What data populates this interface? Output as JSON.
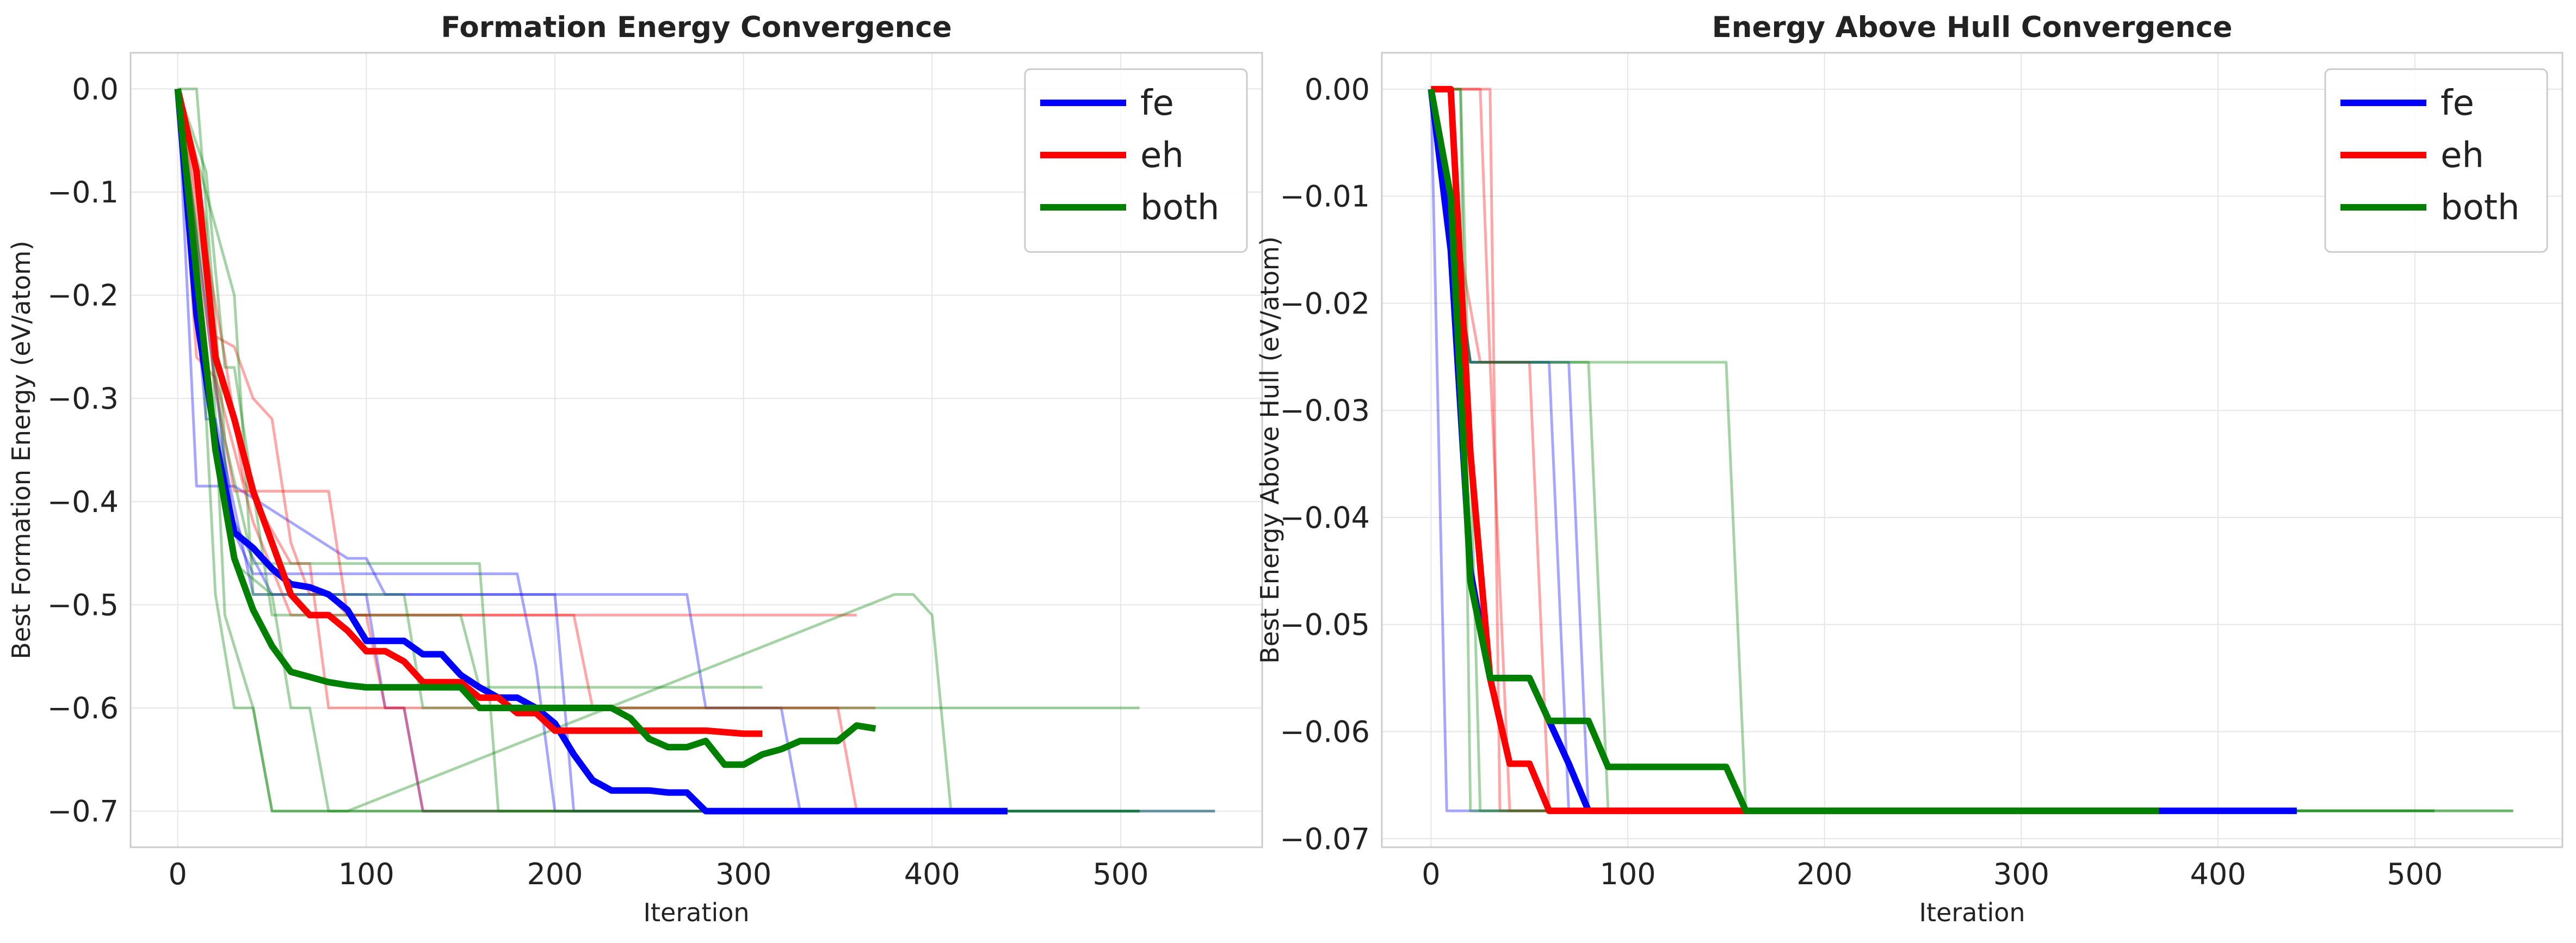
{
  "colors": {
    "fe": "#0000ff",
    "eh": "#ff0000",
    "both": "#008000",
    "grid": "#e6e6e6",
    "frame": "#cccccc"
  },
  "chart_data": [
    {
      "type": "line",
      "title": "Formation Energy Convergence",
      "xlabel": "Iteration",
      "ylabel": "Best Formation Energy (eV/atom)",
      "xlim": [
        -25,
        575
      ],
      "ylim": [
        -0.735,
        0.035
      ],
      "xticks": [
        0,
        100,
        200,
        300,
        400,
        500
      ],
      "xtick_labels": [
        "0",
        "100",
        "200",
        "300",
        "400",
        "500"
      ],
      "yticks": [
        0.0,
        -0.1,
        -0.2,
        -0.3,
        -0.4,
        -0.5,
        -0.6,
        -0.7
      ],
      "ytick_labels": [
        "0.0",
        "−0.1",
        "−0.2",
        "−0.3",
        "−0.4",
        "−0.5",
        "−0.6",
        "−0.7"
      ],
      "grid": true,
      "legend": "top-right",
      "series": [
        {
          "name": "fe",
          "group": "fe",
          "emphasis": true,
          "x": [
            0,
            10,
            20,
            30,
            40,
            50,
            60,
            70,
            80,
            90,
            100,
            110,
            120,
            130,
            140,
            150,
            160,
            170,
            180,
            190,
            200,
            210,
            220,
            230,
            240,
            250,
            260,
            270,
            280,
            290,
            300,
            440
          ],
          "y": [
            0,
            -0.22,
            -0.34,
            -0.43,
            -0.445,
            -0.465,
            -0.48,
            -0.483,
            -0.49,
            -0.505,
            -0.535,
            -0.535,
            -0.535,
            -0.548,
            -0.548,
            -0.568,
            -0.58,
            -0.59,
            -0.59,
            -0.6,
            -0.615,
            -0.645,
            -0.67,
            -0.68,
            -0.68,
            -0.68,
            -0.682,
            -0.682,
            -0.7,
            -0.7,
            -0.7,
            -0.7
          ]
        },
        {
          "name": "eh",
          "group": "eh",
          "emphasis": true,
          "x": [
            0,
            10,
            20,
            30,
            40,
            50,
            60,
            70,
            80,
            90,
            100,
            110,
            120,
            130,
            140,
            150,
            160,
            170,
            180,
            190,
            200,
            220,
            240,
            260,
            280,
            300,
            310
          ],
          "y": [
            0,
            -0.08,
            -0.26,
            -0.32,
            -0.39,
            -0.44,
            -0.49,
            -0.51,
            -0.51,
            -0.525,
            -0.545,
            -0.545,
            -0.555,
            -0.575,
            -0.575,
            -0.575,
            -0.59,
            -0.59,
            -0.605,
            -0.605,
            -0.622,
            -0.622,
            -0.622,
            -0.622,
            -0.622,
            -0.625,
            -0.625
          ]
        },
        {
          "name": "both",
          "group": "both",
          "emphasis": true,
          "x": [
            0,
            10,
            20,
            30,
            40,
            50,
            60,
            70,
            80,
            90,
            100,
            120,
            140,
            150,
            160,
            180,
            200,
            220,
            230,
            240,
            250,
            260,
            270,
            280,
            290,
            300,
            310,
            320,
            330,
            340,
            350,
            360,
            370
          ],
          "y": [
            0,
            -0.18,
            -0.35,
            -0.455,
            -0.505,
            -0.54,
            -0.565,
            -0.57,
            -0.575,
            -0.578,
            -0.58,
            -0.58,
            -0.58,
            -0.58,
            -0.6,
            -0.6,
            -0.6,
            -0.6,
            -0.6,
            -0.61,
            -0.63,
            -0.638,
            -0.638,
            -0.632,
            -0.655,
            -0.655,
            -0.645,
            -0.64,
            -0.632,
            -0.632,
            -0.632,
            -0.617,
            -0.62
          ]
        },
        {
          "group": "fe",
          "x": [
            0,
            10,
            20,
            30,
            90,
            100,
            110,
            200,
            210,
            550
          ],
          "y": [
            0,
            -0.385,
            -0.385,
            -0.385,
            -0.455,
            -0.455,
            -0.49,
            -0.49,
            -0.7,
            -0.7
          ]
        },
        {
          "group": "fe",
          "x": [
            0,
            15,
            20,
            40,
            100,
            110,
            120,
            130,
            140,
            440
          ],
          "y": [
            0,
            -0.32,
            -0.32,
            -0.49,
            -0.49,
            -0.6,
            -0.6,
            -0.7,
            -0.7,
            -0.7
          ]
        },
        {
          "group": "fe",
          "x": [
            0,
            20,
            30,
            50,
            260,
            270,
            280,
            320,
            330,
            510
          ],
          "y": [
            0,
            -0.35,
            -0.42,
            -0.49,
            -0.49,
            -0.49,
            -0.6,
            -0.6,
            -0.7,
            -0.7
          ]
        },
        {
          "group": "fe",
          "x": [
            0,
            30,
            40,
            180,
            190,
            200,
            210,
            440
          ],
          "y": [
            0,
            -0.43,
            -0.47,
            -0.47,
            -0.56,
            -0.7,
            -0.7,
            -0.7
          ]
        },
        {
          "group": "eh",
          "x": [
            0,
            20,
            30,
            40,
            50,
            60,
            70,
            80,
            90,
            100,
            110,
            120,
            130,
            140,
            360
          ],
          "y": [
            0,
            -0.24,
            -0.25,
            -0.3,
            -0.32,
            -0.44,
            -0.49,
            -0.49,
            -0.51,
            -0.51,
            -0.6,
            -0.6,
            -0.7,
            -0.7,
            -0.7
          ]
        },
        {
          "group": "eh",
          "x": [
            0,
            20,
            30,
            40,
            80,
            90,
            100,
            110,
            120,
            130,
            140,
            150,
            160,
            170,
            180,
            360
          ],
          "y": [
            0,
            -0.29,
            -0.39,
            -0.39,
            -0.39,
            -0.51,
            -0.51,
            -0.51,
            -0.51,
            -0.51,
            -0.51,
            -0.51,
            -0.51,
            -0.51,
            -0.51,
            -0.51
          ]
        },
        {
          "group": "eh",
          "x": [
            0,
            25,
            35,
            60,
            70,
            80,
            90,
            100,
            110,
            170,
            180,
            190,
            370
          ],
          "y": [
            0,
            -0.26,
            -0.38,
            -0.46,
            -0.46,
            -0.6,
            -0.6,
            -0.6,
            -0.6,
            -0.6,
            -0.6,
            -0.6,
            -0.6
          ]
        },
        {
          "group": "eh",
          "x": [
            0,
            10,
            20,
            40,
            60,
            210,
            220,
            340,
            350,
            360
          ],
          "y": [
            0,
            -0.26,
            -0.28,
            -0.42,
            -0.51,
            -0.51,
            -0.6,
            -0.6,
            -0.6,
            -0.7
          ]
        },
        {
          "group": "both",
          "x": [
            0,
            15,
            25,
            40,
            50,
            60,
            410,
            550
          ],
          "y": [
            0,
            -0.13,
            -0.51,
            -0.6,
            -0.7,
            -0.7,
            -0.7,
            -0.7
          ]
        },
        {
          "group": "both",
          "x": [
            0,
            10,
            20,
            30,
            40,
            50,
            60,
            70,
            80,
            90,
            290,
            300,
            400,
            410,
            510
          ],
          "y": [
            0,
            -0.14,
            -0.49,
            -0.6,
            -0.6,
            -0.7,
            -0.7,
            -0.7,
            -0.7,
            -0.7,
            -0.7,
            -0.7,
            -0.7,
            -0.7,
            -0.7
          ]
        },
        {
          "group": "both",
          "x": [
            0,
            20,
            30,
            50,
            60,
            70,
            80,
            90,
            380,
            390,
            400,
            410
          ],
          "y": [
            0,
            -0.27,
            -0.46,
            -0.49,
            -0.6,
            -0.6,
            -0.7,
            -0.7,
            -0.49,
            -0.49,
            -0.51,
            -0.7
          ]
        },
        {
          "group": "both",
          "x": [
            0,
            10,
            25,
            40,
            160,
            170,
            510
          ],
          "y": [
            0,
            0,
            -0.34,
            -0.46,
            -0.46,
            -0.7,
            -0.7
          ]
        },
        {
          "group": "both",
          "x": [
            0,
            15,
            25,
            30,
            40,
            50,
            150,
            160,
            170,
            180,
            300,
            310
          ],
          "y": [
            0,
            -0.08,
            -0.27,
            -0.27,
            -0.39,
            -0.51,
            -0.51,
            -0.58,
            -0.58,
            -0.58,
            -0.58,
            -0.58
          ]
        },
        {
          "group": "both",
          "x": [
            0,
            30,
            40,
            50,
            60,
            120,
            130,
            510
          ],
          "y": [
            0,
            -0.2,
            -0.49,
            -0.49,
            -0.49,
            -0.49,
            -0.6,
            -0.6
          ]
        }
      ]
    },
    {
      "type": "line",
      "title": "Energy Above Hull Convergence",
      "xlabel": "Iteration",
      "ylabel": "Best Energy Above Hull (eV/atom)",
      "xlim": [
        -25,
        575
      ],
      "ylim": [
        -0.0708,
        0.0034
      ],
      "xticks": [
        0,
        100,
        200,
        300,
        400,
        500
      ],
      "xtick_labels": [
        "0",
        "100",
        "200",
        "300",
        "400",
        "500"
      ],
      "yticks": [
        0.0,
        -0.01,
        -0.02,
        -0.03,
        -0.04,
        -0.05,
        -0.06,
        -0.07
      ],
      "ytick_labels": [
        "0.00",
        "−0.01",
        "−0.02",
        "−0.03",
        "−0.04",
        "−0.05",
        "−0.06",
        "−0.07"
      ],
      "grid": true,
      "legend": "top-right",
      "series": [
        {
          "name": "fe",
          "group": "fe",
          "emphasis": true,
          "x": [
            0,
            10,
            20,
            30,
            40,
            50,
            60,
            70,
            80,
            440
          ],
          "y": [
            0,
            -0.015,
            -0.045,
            -0.055,
            -0.055,
            -0.055,
            -0.059,
            -0.063,
            -0.0674,
            -0.0674
          ]
        },
        {
          "name": "eh",
          "group": "eh",
          "emphasis": true,
          "x": [
            0,
            10,
            20,
            30,
            40,
            50,
            60,
            370
          ],
          "y": [
            0,
            0,
            -0.034,
            -0.055,
            -0.063,
            -0.063,
            -0.0674,
            -0.0674
          ]
        },
        {
          "name": "both",
          "group": "both",
          "emphasis": true,
          "x": [
            0,
            10,
            20,
            30,
            40,
            50,
            60,
            70,
            80,
            90,
            150,
            160,
            370
          ],
          "y": [
            0,
            -0.01,
            -0.046,
            -0.055,
            -0.055,
            -0.055,
            -0.059,
            -0.059,
            -0.059,
            -0.0633,
            -0.0633,
            -0.0674,
            -0.0674
          ]
        },
        {
          "group": "fe",
          "x": [
            0,
            8,
            440
          ],
          "y": [
            0,
            -0.0674,
            -0.0674
          ]
        },
        {
          "group": "fe",
          "x": [
            0,
            20,
            60,
            70,
            440
          ],
          "y": [
            0,
            -0.0255,
            -0.0255,
            -0.0674,
            -0.0674
          ]
        },
        {
          "group": "fe",
          "x": [
            0,
            20,
            70,
            80,
            440
          ],
          "y": [
            0,
            -0.0255,
            -0.0255,
            -0.0674,
            -0.0674
          ]
        },
        {
          "group": "eh",
          "x": [
            0,
            25,
            30,
            40,
            370
          ],
          "y": [
            0,
            0,
            -0.0255,
            -0.0674,
            -0.0674
          ]
        },
        {
          "group": "eh",
          "x": [
            0,
            30,
            35,
            370
          ],
          "y": [
            0,
            0,
            -0.0674,
            -0.0674
          ]
        },
        {
          "group": "eh",
          "x": [
            0,
            25,
            50,
            60,
            370
          ],
          "y": [
            0,
            -0.0255,
            -0.0255,
            -0.0674,
            -0.0674
          ]
        },
        {
          "group": "both",
          "x": [
            0,
            20,
            80,
            90,
            550
          ],
          "y": [
            0,
            -0.0255,
            -0.0255,
            -0.0674,
            -0.0674
          ]
        },
        {
          "group": "both",
          "x": [
            0,
            20,
            150,
            160,
            550
          ],
          "y": [
            0,
            -0.0255,
            -0.0255,
            -0.0674,
            -0.0674
          ]
        },
        {
          "group": "both",
          "x": [
            0,
            15,
            25,
            510
          ],
          "y": [
            0,
            0,
            -0.0674,
            -0.0674
          ]
        },
        {
          "group": "both",
          "x": [
            0,
            15,
            20,
            510
          ],
          "y": [
            0,
            0,
            -0.0674,
            -0.0674
          ]
        }
      ]
    }
  ]
}
